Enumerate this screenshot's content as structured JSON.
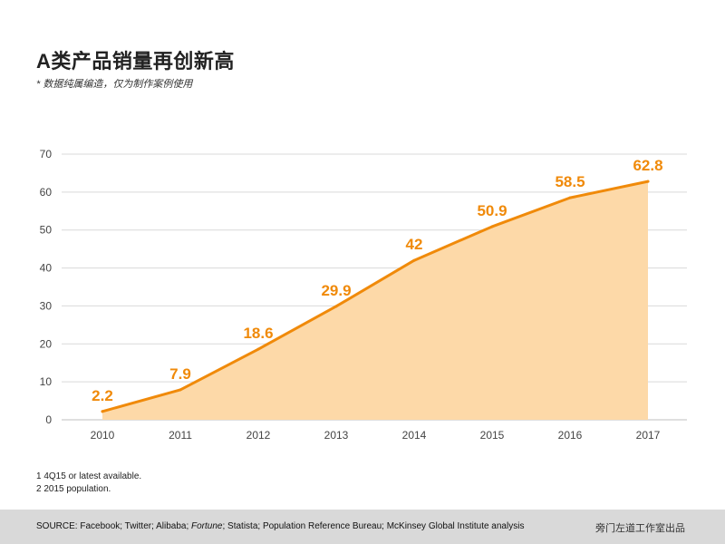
{
  "title": "A类产品销量再创新高",
  "subtitle": "* 数据纯属编造，仅为制作案例使用",
  "notes": [
    "1 4Q15 or latest available.",
    "2 2015 population."
  ],
  "source": {
    "prefix": "SOURCE: Facebook; Twitter; Alibaba; ",
    "italic": "Fortune",
    "suffix": "; Statista; Population Reference Bureau; McKinsey Global Institute analysis"
  },
  "credit": "旁门左道工作室出品",
  "colors": {
    "line": "#f08a0a",
    "fill": "#fdd9a8",
    "label": "#f08a0a",
    "grid": "#d9d9d9",
    "axis": "#bfbfbf"
  },
  "chart_data": {
    "type": "area",
    "categories": [
      "2010",
      "2011",
      "2012",
      "2013",
      "2014",
      "2015",
      "2016",
      "2017"
    ],
    "values": [
      2.2,
      7.9,
      18.6,
      29.9,
      42,
      50.9,
      58.5,
      62.8
    ],
    "data_labels": [
      "2.2",
      "7.9",
      "18.6",
      "29.9",
      "42",
      "50.9",
      "58.5",
      "62.8"
    ],
    "yticks": [
      "0",
      "10",
      "20",
      "30",
      "40",
      "50",
      "60",
      "70"
    ],
    "ylim": [
      0,
      70
    ],
    "grid": true,
    "legend": "none"
  }
}
